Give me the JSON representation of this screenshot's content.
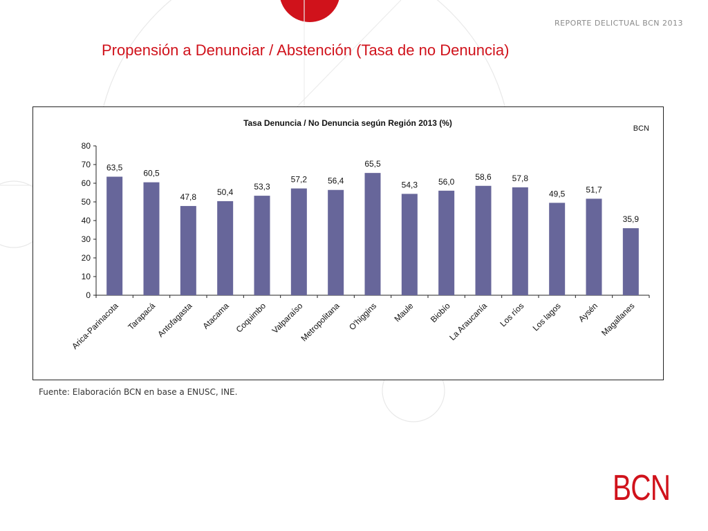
{
  "header": {
    "report_label": "REPORTE DELICTUAL BCN 2013"
  },
  "slide": {
    "title": "Propensión a Denunciar / Abstención (Tasa de no Denuncia)"
  },
  "footer": {
    "source": "Fuente: Elaboración BCN en base a ENUSC, INE.",
    "logo": "BCN"
  },
  "colors": {
    "accent": "#d0121b",
    "bar": "#67669a"
  },
  "chart_data": {
    "type": "bar",
    "title": "Tasa Denuncia / No Denuncia según Región 2013 (%)",
    "corner_label": "BCN",
    "xlabel": "",
    "ylabel": "",
    "ylim": [
      0,
      80
    ],
    "yticks": [
      0,
      10,
      20,
      30,
      40,
      50,
      60,
      70,
      80
    ],
    "grid": false,
    "categories": [
      "Arica-Parinacota",
      "Tarapacá",
      "Antofagasta",
      "Atacama",
      "Coquimbo",
      "Valparaíso",
      "Metropolitana",
      "O'higgins",
      "Maule",
      "Biobío",
      "La Araucanía",
      "Los ríos",
      "Los lagos",
      "Aysén",
      "Magallanes"
    ],
    "values": [
      63.5,
      60.5,
      47.8,
      50.4,
      53.3,
      57.2,
      56.4,
      65.5,
      54.3,
      56.0,
      58.6,
      57.8,
      49.5,
      51.7,
      35.9
    ],
    "value_labels": [
      "63,5",
      "60,5",
      "47,8",
      "50,4",
      "53,3",
      "57,2",
      "56,4",
      "65,5",
      "54,3",
      "56,0",
      "58,6",
      "57,8",
      "49,5",
      "51,7",
      "35,9"
    ]
  }
}
